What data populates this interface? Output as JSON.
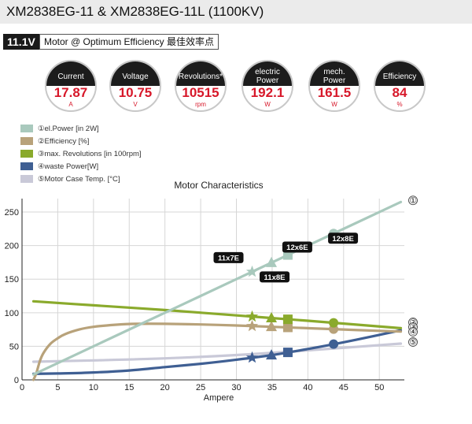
{
  "header": {
    "title": "XM2838EG-11 & XM2838EG-11L (1100KV)"
  },
  "operating_point": {
    "voltage_badge": "11.1V",
    "mode_label": "Motor @ Optimum Efficiency 最佳效率点"
  },
  "gauges": [
    {
      "label": "Current",
      "value": "17.87",
      "unit": "A"
    },
    {
      "label": "Voltage",
      "value": "10.75",
      "unit": "V"
    },
    {
      "label": "Revolutions*",
      "value": "10515",
      "unit": "rpm"
    },
    {
      "label": "electric\nPower",
      "value": "192.1",
      "unit": "W"
    },
    {
      "label": "mech.\nPower",
      "value": "161.5",
      "unit": "W"
    },
    {
      "label": "Efficiency",
      "value": "84",
      "unit": "%"
    }
  ],
  "legend": [
    {
      "label": "①el.Power [in 2W]",
      "color": "#a9c9bd"
    },
    {
      "label": "②Efficiency [%]",
      "color": "#b8a27a"
    },
    {
      "label": "③max. Revolutions [in 100rpm]",
      "color": "#8aaa2c"
    },
    {
      "label": "④waste Power[W]",
      "color": "#3f5f93"
    },
    {
      "label": "⑤Motor Case Temp. [°C]",
      "color": "#c9c9d8"
    }
  ],
  "chart_data": {
    "type": "line",
    "title": "Motor Characteristics",
    "xlabel": "Ampere",
    "ylabel": "",
    "xlim": [
      0,
      53.5
    ],
    "ylim": [
      0,
      270
    ],
    "xticks": [
      0,
      5,
      10,
      15,
      20,
      25,
      30,
      35,
      40,
      45,
      50
    ],
    "yticks": [
      0,
      50,
      100,
      150,
      200,
      250
    ],
    "grid": true,
    "series": [
      {
        "name": "①",
        "color": "#a9c9bd",
        "points": [
          [
            1.6,
            8
          ],
          [
            10,
            50
          ],
          [
            20,
            100
          ],
          [
            30,
            150
          ],
          [
            40,
            200
          ],
          [
            53,
            265
          ]
        ]
      },
      {
        "name": "②",
        "color": "#b8a27a",
        "points": [
          [
            1.6,
            0
          ],
          [
            2,
            10
          ],
          [
            2.5,
            28
          ],
          [
            3,
            40
          ],
          [
            4,
            54
          ],
          [
            5,
            62
          ],
          [
            6,
            68
          ],
          [
            8,
            75
          ],
          [
            10,
            79
          ],
          [
            13,
            82
          ],
          [
            16,
            83.5
          ],
          [
            20,
            83.5
          ],
          [
            25,
            82.5
          ],
          [
            30,
            81
          ],
          [
            35,
            79
          ],
          [
            40,
            77
          ],
          [
            45,
            75
          ],
          [
            50,
            73
          ],
          [
            53,
            72
          ]
        ]
      },
      {
        "name": "③",
        "color": "#8aaa2c",
        "points": [
          [
            1.6,
            117
          ],
          [
            10,
            111
          ],
          [
            20,
            104
          ],
          [
            30,
            96
          ],
          [
            40,
            88
          ],
          [
            53,
            77
          ]
        ]
      },
      {
        "name": "④",
        "color": "#3f5f93",
        "points": [
          [
            1.6,
            9
          ],
          [
            5,
            9.5
          ],
          [
            10,
            11
          ],
          [
            15,
            14
          ],
          [
            20,
            19
          ],
          [
            25,
            24
          ],
          [
            30,
            30
          ],
          [
            35,
            37
          ],
          [
            40,
            46
          ],
          [
            45,
            56
          ],
          [
            50,
            67
          ],
          [
            53,
            74
          ]
        ]
      },
      {
        "name": "⑤",
        "color": "#c9c9d8",
        "points": [
          [
            1.6,
            27
          ],
          [
            10,
            29
          ],
          [
            20,
            32
          ],
          [
            30,
            37
          ],
          [
            40,
            44
          ],
          [
            53,
            54
          ]
        ]
      }
    ],
    "series_end_labels": [
      "①",
      "②",
      "③",
      "④",
      "⑤"
    ],
    "propeller_markers": [
      {
        "label": "11x7E",
        "x": 32.2,
        "marker": "star"
      },
      {
        "label": "11x8E",
        "x": 34.9,
        "marker": "triangle"
      },
      {
        "label": "12x6E",
        "x": 37.2,
        "marker": "square"
      },
      {
        "label": "12x8E",
        "x": 43.6,
        "marker": "circle"
      }
    ]
  }
}
